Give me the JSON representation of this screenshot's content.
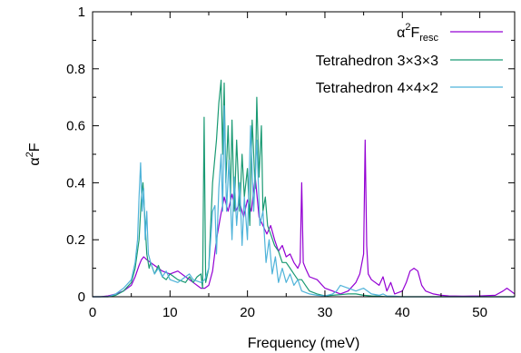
{
  "chart_data": {
    "type": "line",
    "title": "",
    "xlabel": "Frequency (meV)",
    "ylabel": {
      "base": "α",
      "sup": "2",
      "rest": "F"
    },
    "xlim": [
      0,
      54.5
    ],
    "ylim": [
      0,
      1
    ],
    "xticks": [
      0,
      10,
      20,
      30,
      40,
      50
    ],
    "yticks": [
      0,
      0.2,
      0.4,
      0.6,
      0.8,
      1
    ],
    "ytick_labels": [
      "0",
      "0.2",
      "0.4",
      "0.6",
      "0.8",
      "1"
    ],
    "grid": false,
    "legend_position": "top-right",
    "series": [
      {
        "name": "α²F_resc",
        "legend": {
          "base": "α",
          "sup": "2",
          "mid": "F",
          "sub": "resc"
        },
        "color": "#9400d3",
        "x": [
          0,
          1,
          2,
          3,
          4,
          5,
          5.5,
          6,
          6.3,
          6.6,
          7,
          7.5,
          8,
          9,
          10,
          11,
          12,
          13,
          14,
          14.5,
          15,
          15.5,
          16,
          16.5,
          17,
          17.5,
          18,
          18.5,
          19,
          19.5,
          20,
          20.5,
          21,
          21.5,
          22,
          22.5,
          23,
          23.5,
          24,
          24.5,
          25,
          25.5,
          26,
          26.5,
          26.8,
          27,
          27.2,
          27.5,
          28,
          29,
          30,
          31,
          32,
          33,
          34,
          34.5,
          35,
          35.2,
          35.4,
          35.6,
          36,
          37,
          37.5,
          38,
          38.5,
          39,
          40,
          40.5,
          41,
          41.5,
          42,
          42.5,
          43,
          44,
          45,
          46,
          48,
          50,
          52,
          53,
          53.5,
          54,
          54.5
        ],
        "y": [
          0,
          0,
          0.003,
          0.01,
          0.02,
          0.04,
          0.07,
          0.11,
          0.13,
          0.14,
          0.13,
          0.12,
          0.11,
          0.09,
          0.08,
          0.09,
          0.07,
          0.05,
          0.03,
          0.03,
          0.04,
          0.09,
          0.2,
          0.28,
          0.35,
          0.3,
          0.36,
          0.3,
          0.33,
          0.28,
          0.34,
          0.3,
          0.42,
          0.28,
          0.25,
          0.22,
          0.25,
          0.2,
          0.16,
          0.18,
          0.14,
          0.15,
          0.12,
          0.1,
          0.12,
          0.4,
          0.12,
          0.1,
          0.07,
          0.06,
          0.03,
          0.02,
          0.01,
          0.02,
          0.05,
          0.08,
          0.15,
          0.55,
          0.18,
          0.08,
          0.06,
          0.04,
          0.07,
          0.02,
          0.05,
          0.01,
          0.02,
          0.05,
          0.09,
          0.1,
          0.09,
          0.04,
          0.02,
          0.01,
          0.005,
          0.003,
          0.002,
          0.003,
          0.005,
          0.02,
          0.03,
          0.02,
          0.01
        ]
      },
      {
        "name": "Tetrahedron 3×3×3",
        "color": "#1a9a73",
        "x": [
          0,
          2,
          3,
          4,
          5,
          5.5,
          6,
          6.3,
          6.5,
          6.7,
          7,
          7.3,
          7.5,
          8,
          8.5,
          9,
          9.5,
          10,
          10.5,
          11,
          12,
          12.5,
          13,
          13.5,
          14,
          14.2,
          14.4,
          14.6,
          15,
          15.5,
          16,
          16.3,
          16.6,
          16.8,
          17,
          17.2,
          17.5,
          17.8,
          18,
          18.3,
          18.6,
          19,
          19.3,
          19.6,
          20,
          20.3,
          20.6,
          21,
          21.2,
          21.5,
          21.8,
          22,
          22.3,
          22.6,
          23,
          23.5,
          24,
          24.5,
          25,
          25.5,
          26,
          26.5,
          27,
          27.5,
          28,
          29,
          30,
          31,
          33,
          34,
          35,
          36,
          37,
          38,
          40,
          45,
          54.5
        ],
        "y": [
          0,
          0,
          0.005,
          0.02,
          0.05,
          0.1,
          0.2,
          0.35,
          0.4,
          0.3,
          0.15,
          0.1,
          0.12,
          0.08,
          0.11,
          0.07,
          0.06,
          0.08,
          0.07,
          0.06,
          0.05,
          0.07,
          0.05,
          0.07,
          0.08,
          0.03,
          0.63,
          0.05,
          0.1,
          0.4,
          0.55,
          0.68,
          0.76,
          0.5,
          0.75,
          0.4,
          0.6,
          0.35,
          0.62,
          0.3,
          0.55,
          0.3,
          0.5,
          0.35,
          0.45,
          0.25,
          0.62,
          0.38,
          0.7,
          0.42,
          0.6,
          0.3,
          0.35,
          0.25,
          0.22,
          0.18,
          0.16,
          0.12,
          0.12,
          0.1,
          0.08,
          0.06,
          0.06,
          0.04,
          0.02,
          0.01,
          0.003,
          0.005,
          0.01,
          0.01,
          0.005,
          0.003,
          0.002,
          0,
          0,
          0,
          0
        ]
      },
      {
        "name": "Tetrahedron 4×4×2",
        "color": "#4fb3d9",
        "x": [
          0,
          2,
          3,
          4,
          5,
          5.5,
          5.8,
          6,
          6.2,
          6.4,
          6.6,
          6.8,
          7,
          7.2,
          7.5,
          8,
          8.5,
          9,
          9.5,
          10,
          11,
          12,
          12.5,
          13,
          14,
          14.5,
          15,
          15.5,
          15.8,
          16,
          16.3,
          16.6,
          16.8,
          17,
          17.3,
          17.6,
          18,
          18.3,
          18.6,
          19,
          19.3,
          19.6,
          20,
          20.4,
          20.8,
          21.2,
          21.6,
          22,
          22.4,
          22.8,
          23.2,
          23.6,
          24,
          24.5,
          25,
          25.5,
          26,
          26.5,
          27,
          28,
          29,
          30,
          31,
          31.5,
          32,
          33,
          34,
          35,
          36,
          37,
          37.5,
          38,
          39,
          40,
          45,
          54.5
        ],
        "y": [
          0,
          0,
          0.01,
          0.03,
          0.06,
          0.12,
          0.2,
          0.35,
          0.47,
          0.3,
          0.38,
          0.2,
          0.3,
          0.15,
          0.12,
          0.08,
          0.1,
          0.07,
          0.09,
          0.06,
          0.05,
          0.07,
          0.08,
          0.06,
          0.05,
          0.06,
          0.1,
          0.3,
          0.32,
          0.15,
          0.38,
          0.5,
          0.3,
          0.67,
          0.3,
          0.48,
          0.2,
          0.42,
          0.25,
          0.4,
          0.18,
          0.35,
          0.2,
          0.6,
          0.3,
          0.55,
          0.25,
          0.3,
          0.12,
          0.2,
          0.08,
          0.14,
          0.05,
          0.1,
          0.05,
          0.08,
          0.04,
          0.06,
          0.02,
          0.01,
          0.005,
          0.003,
          0.01,
          0.02,
          0.04,
          0.03,
          0.02,
          0.03,
          0.01,
          0.005,
          0.01,
          0.003,
          0.002,
          0,
          0,
          0
        ]
      }
    ]
  }
}
